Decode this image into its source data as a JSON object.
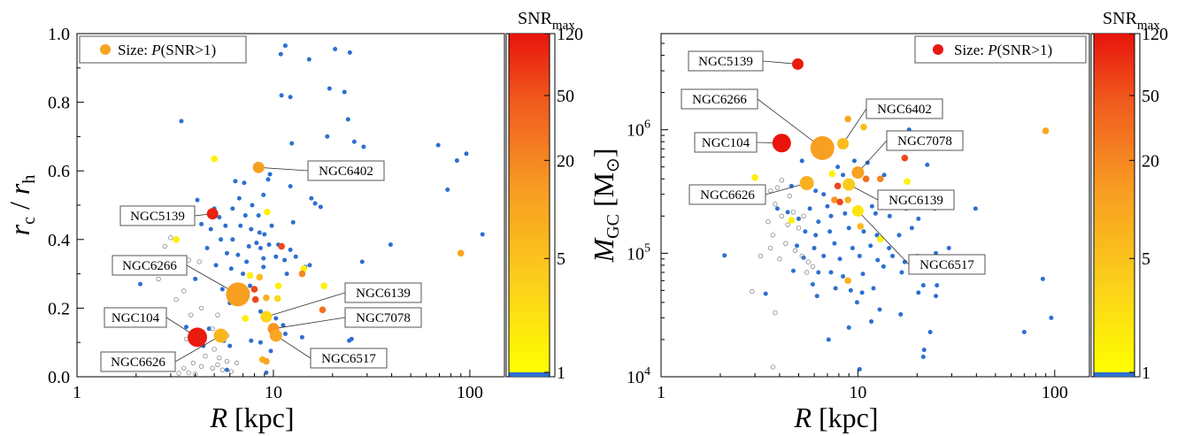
{
  "chart_data": [
    {
      "type": "scatter",
      "xlabel_main": "R",
      "xlabel_unit": "[kpc]",
      "ylabel": {
        "main1": "r",
        "sub1": "c",
        "sep": " / ",
        "main2": "r",
        "sub2": "h"
      },
      "xscale": "log",
      "xlim": [
        1,
        150
      ],
      "yscale": "linear",
      "ylim": [
        0,
        1.0
      ],
      "xticks": [
        "1",
        "10",
        "100"
      ],
      "yticks": [
        "0.0",
        "0.2",
        "0.4",
        "0.6",
        "0.8",
        "1.0"
      ],
      "legend": {
        "text_pre": "Size: ",
        "text_italic": "P",
        "text_post": "(SNR>1)",
        "placement": "top-left",
        "color": "#f5a623"
      },
      "colorbar": {
        "title_main": "SNR",
        "title_sub": "max",
        "ticks": [
          "1",
          "5",
          "20",
          "50",
          "120"
        ],
        "scale": "log",
        "range": [
          1,
          120
        ]
      },
      "labelled_points": [
        {
          "name": "NGC6402",
          "x": 8.4,
          "y": 0.61,
          "snr": 12,
          "size": 0.3
        },
        {
          "name": "NGC5139",
          "x": 4.9,
          "y": 0.475,
          "snr": 100,
          "size": 0.3
        },
        {
          "name": "NGC6266",
          "x": 6.6,
          "y": 0.24,
          "snr": 12,
          "size": 1.0
        },
        {
          "name": "NGC6139",
          "x": 9.2,
          "y": 0.175,
          "snr": 3,
          "size": 0.3
        },
        {
          "name": "NGC7078",
          "x": 10.0,
          "y": 0.14,
          "snr": 15,
          "size": 0.3
        },
        {
          "name": "NGC104",
          "x": 4.1,
          "y": 0.115,
          "snr": 110,
          "size": 0.75
        },
        {
          "name": "NGC6626",
          "x": 5.4,
          "y": 0.12,
          "snr": 7,
          "size": 0.45
        },
        {
          "name": "NGC6517",
          "x": 10.3,
          "y": 0.12,
          "snr": 10,
          "size": 0.35
        }
      ],
      "colored_points": [
        {
          "x": 5.0,
          "y": 0.635,
          "snr": 1.5
        },
        {
          "x": 9.3,
          "y": 0.48,
          "snr": 1.5
        },
        {
          "x": 11.0,
          "y": 0.38,
          "snr": 60
        },
        {
          "x": 14.3,
          "y": 0.315,
          "snr": 1.5
        },
        {
          "x": 7.6,
          "y": 0.295,
          "snr": 1.5
        },
        {
          "x": 8.5,
          "y": 0.29,
          "snr": 6
        },
        {
          "x": 10.6,
          "y": 0.265,
          "snr": 1.5
        },
        {
          "x": 14.0,
          "y": 0.3,
          "snr": 20
        },
        {
          "x": 18.1,
          "y": 0.265,
          "snr": 1.5
        },
        {
          "x": 8.0,
          "y": 0.255,
          "snr": 60
        },
        {
          "x": 8.1,
          "y": 0.225,
          "snr": 60
        },
        {
          "x": 9.2,
          "y": 0.23,
          "snr": 8
        },
        {
          "x": 10.5,
          "y": 0.228,
          "snr": 3
        },
        {
          "x": 17.8,
          "y": 0.195,
          "snr": 30
        },
        {
          "x": 7.2,
          "y": 0.17,
          "snr": 1.5
        },
        {
          "x": 3.2,
          "y": 0.4,
          "snr": 1.5
        },
        {
          "x": 8.8,
          "y": 0.05,
          "snr": 8
        },
        {
          "x": 9.2,
          "y": 0.045,
          "snr": 10
        },
        {
          "x": 90,
          "y": 0.36,
          "snr": 10
        }
      ],
      "blue_points": [
        [
          11.5,
          0.965
        ],
        [
          10.9,
          0.94
        ],
        [
          15.2,
          0.925
        ],
        [
          20.6,
          0.955
        ],
        [
          24.5,
          0.945
        ],
        [
          3.4,
          0.745
        ],
        [
          11.0,
          0.82
        ],
        [
          12.2,
          0.815
        ],
        [
          19.3,
          0.84
        ],
        [
          23.0,
          0.83
        ],
        [
          24.0,
          0.75
        ],
        [
          12.4,
          0.68
        ],
        [
          18.8,
          0.7
        ],
        [
          25.8,
          0.685
        ],
        [
          28.8,
          0.67
        ],
        [
          69.0,
          0.675
        ],
        [
          96,
          0.65
        ],
        [
          86,
          0.63
        ],
        [
          77,
          0.545
        ],
        [
          116,
          0.415
        ],
        [
          39.5,
          0.385
        ],
        [
          28.3,
          0.335
        ],
        [
          32.5,
          0.26
        ],
        [
          24.3,
          0.105
        ],
        [
          4.1,
          0.515
        ],
        [
          6.4,
          0.57
        ],
        [
          7.1,
          0.565
        ],
        [
          8.9,
          0.53
        ],
        [
          9.4,
          0.575
        ],
        [
          9.6,
          0.59
        ],
        [
          12.2,
          0.555
        ],
        [
          15.6,
          0.52
        ],
        [
          16.3,
          0.505
        ],
        [
          17.4,
          0.495
        ],
        [
          5.0,
          0.49
        ],
        [
          5.3,
          0.465
        ],
        [
          6.2,
          0.49
        ],
        [
          6.7,
          0.52
        ],
        [
          7.2,
          0.47
        ],
        [
          7.8,
          0.5
        ],
        [
          8.4,
          0.47
        ],
        [
          9.8,
          0.44
        ],
        [
          12.6,
          0.45
        ],
        [
          4.3,
          0.445
        ],
        [
          4.8,
          0.43
        ],
        [
          5.7,
          0.44
        ],
        [
          6.8,
          0.44
        ],
        [
          7.7,
          0.43
        ],
        [
          8.5,
          0.42
        ],
        [
          9.0,
          0.415
        ],
        [
          5.4,
          0.4
        ],
        [
          6.2,
          0.4
        ],
        [
          7.5,
          0.38
        ],
        [
          8.2,
          0.39
        ],
        [
          8.6,
          0.375
        ],
        [
          9.5,
          0.385
        ],
        [
          10.6,
          0.385
        ],
        [
          12.2,
          0.37
        ],
        [
          4.6,
          0.375
        ],
        [
          5.8,
          0.36
        ],
        [
          6.6,
          0.355
        ],
        [
          7.3,
          0.335
        ],
        [
          8.9,
          0.345
        ],
        [
          10.3,
          0.35
        ],
        [
          11.4,
          0.34
        ],
        [
          13.0,
          0.35
        ],
        [
          14.5,
          0.32
        ],
        [
          15.3,
          0.325
        ],
        [
          5.1,
          0.325
        ],
        [
          6.1,
          0.315
        ],
        [
          7.0,
          0.3
        ],
        [
          8.9,
          0.32
        ],
        [
          11.7,
          0.3
        ],
        [
          2.1,
          0.27
        ],
        [
          4.0,
          0.285
        ],
        [
          5.5,
          0.255
        ],
        [
          7.6,
          0.265
        ],
        [
          6.0,
          0.215
        ],
        [
          7.1,
          0.17
        ],
        [
          8.6,
          0.19
        ],
        [
          10.3,
          0.17
        ],
        [
          11.2,
          0.15
        ],
        [
          3.6,
          0.145
        ],
        [
          4.4,
          0.09
        ],
        [
          5.6,
          0.105
        ],
        [
          7.7,
          0.105
        ],
        [
          8.6,
          0.1
        ],
        [
          11.5,
          0.125
        ],
        [
          9.7,
          0.075
        ],
        [
          14.0,
          0.115
        ],
        [
          25.0,
          0.11
        ],
        [
          4.7,
          0.14
        ],
        [
          9.2,
          0.012
        ],
        [
          6.0,
          0.09
        ],
        [
          5.8,
          0.02
        ]
      ],
      "hollow_points": [
        [
          3.0,
          0.405
        ],
        [
          2.8,
          0.38
        ],
        [
          3.7,
          0.34
        ],
        [
          2.6,
          0.285
        ],
        [
          4.2,
          0.335
        ],
        [
          3.5,
          0.25
        ],
        [
          3.2,
          0.225
        ],
        [
          4.3,
          0.2
        ],
        [
          3.8,
          0.18
        ],
        [
          5.2,
          0.18
        ],
        [
          4.9,
          0.14
        ],
        [
          5.8,
          0.12
        ],
        [
          3.6,
          0.11
        ],
        [
          4.0,
          0.1
        ],
        [
          5.0,
          0.08
        ],
        [
          4.5,
          0.06
        ],
        [
          5.3,
          0.055
        ],
        [
          5.8,
          0.045
        ],
        [
          3.9,
          0.04
        ],
        [
          4.3,
          0.03
        ],
        [
          4.9,
          0.025
        ],
        [
          5.2,
          0.035
        ],
        [
          5.5,
          0.02
        ],
        [
          3.5,
          0.025
        ],
        [
          3.7,
          0.012
        ],
        [
          4.0,
          0.008
        ],
        [
          6.5,
          0.04
        ],
        [
          6.1,
          0.015
        ],
        [
          3.3,
          0.01
        ]
      ]
    },
    {
      "type": "scatter",
      "xlabel_main": "R",
      "xlabel_unit": "[kpc]",
      "ylabel": {
        "main": "M",
        "sub": "GC",
        "unit_pre": " [M",
        "unit_sub": "⊙",
        "unit_post": "]"
      },
      "xscale": "log",
      "xlim": [
        1,
        150
      ],
      "yscale": "log",
      "ylim": [
        10000,
        6000000
      ],
      "xticks": [
        "1",
        "10",
        "100"
      ],
      "yticks": [
        {
          "base": "10",
          "exp": "4",
          "value": 10000
        },
        {
          "base": "10",
          "exp": "5",
          "value": 100000
        },
        {
          "base": "10",
          "exp": "6",
          "value": 1000000
        }
      ],
      "legend": {
        "text_pre": "Size:  ",
        "text_italic": "P",
        "text_post": "(SNR>1)",
        "placement": "top-right",
        "color": "#e8190f"
      },
      "colorbar": {
        "title_main": "SNR",
        "title_sub": "max",
        "ticks": [
          "1",
          "5",
          "20",
          "50",
          "120"
        ],
        "scale": "log",
        "range": [
          1,
          120
        ]
      },
      "labelled_points": [
        {
          "name": "NGC5139",
          "x": 4.95,
          "y": 3400000,
          "snr": 110,
          "size": 0.3
        },
        {
          "name": "NGC6266",
          "x": 6.6,
          "y": 710000,
          "snr": 12,
          "size": 1.0
        },
        {
          "name": "NGC6402",
          "x": 8.4,
          "y": 770000,
          "snr": 6,
          "size": 0.3
        },
        {
          "name": "NGC104",
          "x": 4.1,
          "y": 780000,
          "snr": 120,
          "size": 0.7
        },
        {
          "name": "NGC7078",
          "x": 10.0,
          "y": 450000,
          "snr": 12,
          "size": 0.35
        },
        {
          "name": "NGC6626",
          "x": 5.5,
          "y": 370000,
          "snr": 8,
          "size": 0.45
        },
        {
          "name": "NGC6139",
          "x": 9.0,
          "y": 360000,
          "snr": 4,
          "size": 0.35
        },
        {
          "name": "NGC6517",
          "x": 10.0,
          "y": 220000,
          "snr": 2,
          "size": 0.3
        }
      ],
      "colored_points": [
        {
          "x": 8.9,
          "y": 1220000,
          "snr": 10
        },
        {
          "x": 10.7,
          "y": 1050000,
          "snr": 6
        },
        {
          "x": 90,
          "y": 980000,
          "snr": 10
        },
        {
          "x": 17.3,
          "y": 590000,
          "snr": 60
        },
        {
          "x": 7.4,
          "y": 440000,
          "snr": 1.5
        },
        {
          "x": 11.0,
          "y": 400000,
          "snr": 30
        },
        {
          "x": 13.0,
          "y": 400000,
          "snr": 20
        },
        {
          "x": 17.8,
          "y": 380000,
          "snr": 1.5
        },
        {
          "x": 3.0,
          "y": 410000,
          "snr": 1.5
        },
        {
          "x": 7.9,
          "y": 350000,
          "snr": 60
        },
        {
          "x": 7.6,
          "y": 270000,
          "snr": 15
        },
        {
          "x": 8.1,
          "y": 260000,
          "snr": 60
        },
        {
          "x": 8.9,
          "y": 270000,
          "snr": 8
        },
        {
          "x": 4.6,
          "y": 185000,
          "snr": 1.5
        },
        {
          "x": 10.3,
          "y": 165000,
          "snr": 6
        },
        {
          "x": 13.0,
          "y": 130000,
          "snr": 1.5
        },
        {
          "x": 8.9,
          "y": 60000,
          "snr": 8
        }
      ],
      "blue_points": [
        [
          25.0,
          1380000
        ],
        [
          32.5,
          780000
        ],
        [
          18.2,
          1000000
        ],
        [
          5.2,
          560000
        ],
        [
          9.6,
          560000
        ],
        [
          7.9,
          500000
        ],
        [
          11.2,
          540000
        ],
        [
          22.5,
          520000
        ],
        [
          8.4,
          430000
        ],
        [
          13.6,
          430000
        ],
        [
          4.6,
          350000
        ],
        [
          15.5,
          300000
        ],
        [
          28.0,
          290000
        ],
        [
          24.1,
          270000
        ],
        [
          6.1,
          320000
        ],
        [
          6.7,
          300000
        ],
        [
          3.9,
          230000
        ],
        [
          4.4,
          215000
        ],
        [
          5.7,
          230000
        ],
        [
          7.0,
          240000
        ],
        [
          11.8,
          240000
        ],
        [
          17.6,
          230000
        ],
        [
          24.6,
          230000
        ],
        [
          39.6,
          230000
        ],
        [
          5.0,
          190000
        ],
        [
          6.3,
          180000
        ],
        [
          7.3,
          200000
        ],
        [
          8.6,
          210000
        ],
        [
          12.3,
          210000
        ],
        [
          14.5,
          200000
        ],
        [
          20.3,
          190000
        ],
        [
          5.4,
          150000
        ],
        [
          6.1,
          140000
        ],
        [
          7.2,
          150000
        ],
        [
          9.0,
          160000
        ],
        [
          10.7,
          150000
        ],
        [
          12.5,
          140000
        ],
        [
          16.2,
          140000
        ],
        [
          18.8,
          160000
        ],
        [
          4.9,
          115000
        ],
        [
          6.0,
          110000
        ],
        [
          7.6,
          120000
        ],
        [
          9.4,
          110000
        ],
        [
          11.6,
          115000
        ],
        [
          14.4,
          110000
        ],
        [
          5.3,
          92000
        ],
        [
          6.7,
          95000
        ],
        [
          8.1,
          90000
        ],
        [
          10.2,
          95000
        ],
        [
          12.6,
          88000
        ],
        [
          15.0,
          95000
        ],
        [
          17.3,
          85000
        ],
        [
          20.0,
          95000
        ],
        [
          24.9,
          100000
        ],
        [
          29.0,
          110000
        ],
        [
          2.1,
          96000
        ],
        [
          4.7,
          72000
        ],
        [
          6.3,
          70000
        ],
        [
          7.3,
          70000
        ],
        [
          8.4,
          65000
        ],
        [
          10.6,
          68000
        ],
        [
          13.5,
          78000
        ],
        [
          16.7,
          70000
        ],
        [
          5.9,
          56000
        ],
        [
          7.7,
          52000
        ],
        [
          9.2,
          50000
        ],
        [
          10.5,
          48000
        ],
        [
          12.0,
          52000
        ],
        [
          21.5,
          55000
        ],
        [
          25.2,
          55000
        ],
        [
          6.2,
          45000
        ],
        [
          9.9,
          40000
        ],
        [
          20.3,
          48000
        ],
        [
          24.9,
          45000
        ],
        [
          3.4,
          47000
        ],
        [
          12.9,
          35000
        ],
        [
          16.5,
          32000
        ],
        [
          9.0,
          25000
        ],
        [
          11.7,
          28000
        ],
        [
          87,
          62000
        ],
        [
          96,
          30000
        ],
        [
          70,
          23000
        ],
        [
          23.3,
          23000
        ],
        [
          7.1,
          20000
        ],
        [
          21.7,
          16500
        ],
        [
          21.5,
          14500
        ],
        [
          10.2,
          11500
        ]
      ],
      "hollow_points": [
        [
          4.1,
          390000
        ],
        [
          3.9,
          340000
        ],
        [
          3.6,
          320000
        ],
        [
          4.5,
          290000
        ],
        [
          3.8,
          250000
        ],
        [
          4.1,
          200000
        ],
        [
          4.7,
          215000
        ],
        [
          5.3,
          200000
        ],
        [
          3.5,
          180000
        ],
        [
          4.4,
          170000
        ],
        [
          5.0,
          160000
        ],
        [
          3.7,
          140000
        ],
        [
          4.3,
          120000
        ],
        [
          3.6,
          110000
        ],
        [
          4.8,
          105000
        ],
        [
          5.2,
          95000
        ],
        [
          5.6,
          85000
        ],
        [
          5.9,
          78000
        ],
        [
          5.5,
          70000
        ],
        [
          3.2,
          95000
        ],
        [
          4.0,
          90000
        ],
        [
          2.9,
          49000
        ],
        [
          3.8,
          33000
        ],
        [
          3.7,
          12000
        ]
      ]
    }
  ]
}
